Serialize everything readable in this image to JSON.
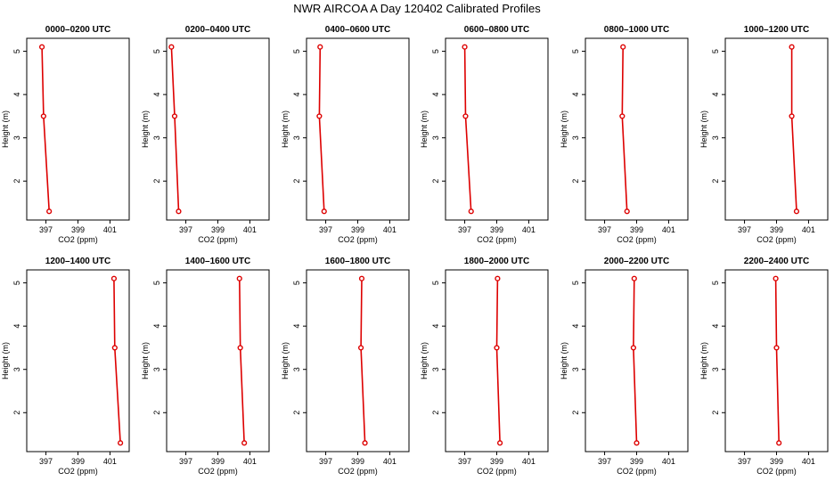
{
  "figure_title": "NWR AIRCOA A  Day 120402  Calibrated Profiles",
  "colors": {
    "line": "#dd0000",
    "axis": "#000000",
    "background": "#ffffff"
  },
  "chart_data": [
    {
      "type": "line",
      "title": "0000–0200 UTC",
      "xlabel": "CO2 (ppm)",
      "ylabel": "Height (m)",
      "xlim": [
        395.8,
        402.2
      ],
      "ylim": [
        1.1,
        5.3
      ],
      "xticks": [
        397,
        399,
        401
      ],
      "yticks": [
        2,
        3,
        4,
        5
      ],
      "x": [
        396.75,
        396.85,
        397.2
      ],
      "y": [
        5.1,
        3.5,
        1.3
      ]
    },
    {
      "type": "line",
      "title": "0200–0400 UTC",
      "xlabel": "CO2 (ppm)",
      "ylabel": "Height (m)",
      "xlim": [
        395.8,
        402.2
      ],
      "ylim": [
        1.1,
        5.3
      ],
      "xticks": [
        397,
        399,
        401
      ],
      "yticks": [
        2,
        3,
        4,
        5
      ],
      "x": [
        396.1,
        396.3,
        396.55
      ],
      "y": [
        5.1,
        3.5,
        1.3
      ]
    },
    {
      "type": "line",
      "title": "0400–0600 UTC",
      "xlabel": "CO2 (ppm)",
      "ylabel": "Height (m)",
      "xlim": [
        395.8,
        402.2
      ],
      "ylim": [
        1.1,
        5.3
      ],
      "xticks": [
        397,
        399,
        401
      ],
      "yticks": [
        2,
        3,
        4,
        5
      ],
      "x": [
        396.65,
        396.6,
        396.9
      ],
      "y": [
        5.1,
        3.5,
        1.3
      ]
    },
    {
      "type": "line",
      "title": "0600–0800 UTC",
      "xlabel": "CO2 (ppm)",
      "ylabel": "Height (m)",
      "xlim": [
        395.8,
        402.2
      ],
      "ylim": [
        1.1,
        5.3
      ],
      "xticks": [
        397,
        399,
        401
      ],
      "yticks": [
        2,
        3,
        4,
        5
      ],
      "x": [
        397.0,
        397.05,
        397.4
      ],
      "y": [
        5.1,
        3.5,
        1.3
      ]
    },
    {
      "type": "line",
      "title": "0800–1000 UTC",
      "xlabel": "CO2 (ppm)",
      "ylabel": "Height (m)",
      "xlim": [
        395.8,
        402.2
      ],
      "ylim": [
        1.1,
        5.3
      ],
      "xticks": [
        397,
        399,
        401
      ],
      "yticks": [
        2,
        3,
        4,
        5
      ],
      "x": [
        398.15,
        398.1,
        398.4
      ],
      "y": [
        5.1,
        3.5,
        1.3
      ]
    },
    {
      "type": "line",
      "title": "1000–1200 UTC",
      "xlabel": "CO2 (ppm)",
      "ylabel": "Height (m)",
      "xlim": [
        395.8,
        402.2
      ],
      "ylim": [
        1.1,
        5.3
      ],
      "xticks": [
        397,
        399,
        401
      ],
      "yticks": [
        2,
        3,
        4,
        5
      ],
      "x": [
        399.95,
        399.95,
        400.25
      ],
      "y": [
        5.1,
        3.5,
        1.3
      ]
    },
    {
      "type": "line",
      "title": "1200–1400 UTC",
      "xlabel": "CO2 (ppm)",
      "ylabel": "Height (m)",
      "xlim": [
        395.8,
        402.2
      ],
      "ylim": [
        1.1,
        5.3
      ],
      "xticks": [
        397,
        399,
        401
      ],
      "yticks": [
        2,
        3,
        4,
        5
      ],
      "x": [
        401.25,
        401.3,
        401.65
      ],
      "y": [
        5.1,
        3.5,
        1.3
      ]
    },
    {
      "type": "line",
      "title": "1400–1600 UTC",
      "xlabel": "CO2 (ppm)",
      "ylabel": "Height (m)",
      "xlim": [
        395.8,
        402.2
      ],
      "ylim": [
        1.1,
        5.3
      ],
      "xticks": [
        397,
        399,
        401
      ],
      "yticks": [
        2,
        3,
        4,
        5
      ],
      "x": [
        400.35,
        400.4,
        400.65
      ],
      "y": [
        5.1,
        3.5,
        1.3
      ]
    },
    {
      "type": "line",
      "title": "1600–1800 UTC",
      "xlabel": "CO2 (ppm)",
      "ylabel": "Height (m)",
      "xlim": [
        395.8,
        402.2
      ],
      "ylim": [
        1.1,
        5.3
      ],
      "xticks": [
        397,
        399,
        401
      ],
      "yticks": [
        2,
        3,
        4,
        5
      ],
      "x": [
        399.25,
        399.2,
        399.45
      ],
      "y": [
        5.1,
        3.5,
        1.3
      ]
    },
    {
      "type": "line",
      "title": "1800–2000 UTC",
      "xlabel": "CO2 (ppm)",
      "ylabel": "Height (m)",
      "xlim": [
        395.8,
        402.2
      ],
      "ylim": [
        1.1,
        5.3
      ],
      "xticks": [
        397,
        399,
        401
      ],
      "yticks": [
        2,
        3,
        4,
        5
      ],
      "x": [
        399.05,
        399.0,
        399.2
      ],
      "y": [
        5.1,
        3.5,
        1.3
      ]
    },
    {
      "type": "line",
      "title": "2000–2200 UTC",
      "xlabel": "CO2 (ppm)",
      "ylabel": "Height (m)",
      "xlim": [
        395.8,
        402.2
      ],
      "ylim": [
        1.1,
        5.3
      ],
      "xticks": [
        397,
        399,
        401
      ],
      "yticks": [
        2,
        3,
        4,
        5
      ],
      "x": [
        398.85,
        398.8,
        399.0
      ],
      "y": [
        5.1,
        3.5,
        1.3
      ]
    },
    {
      "type": "line",
      "title": "2200–2400 UTC",
      "xlabel": "CO2 (ppm)",
      "ylabel": "Height (m)",
      "xlim": [
        395.8,
        402.2
      ],
      "ylim": [
        1.1,
        5.3
      ],
      "xticks": [
        397,
        399,
        401
      ],
      "yticks": [
        2,
        3,
        4,
        5
      ],
      "x": [
        398.95,
        399.0,
        399.15
      ],
      "y": [
        5.1,
        3.5,
        1.3
      ]
    }
  ]
}
